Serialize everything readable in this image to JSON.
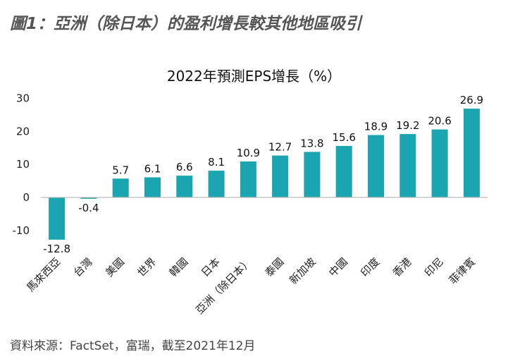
{
  "figure_title": "圖1：亞洲（除日本）的盈利增長較其他地區吸引",
  "source_note": "資料來源：FactSet，富瑞，截至2021年12月",
  "colors": {
    "bar": "#1aa5b0",
    "axis": "#bbbbbb",
    "title": "#555555"
  },
  "chart_data": {
    "type": "bar",
    "title": "2022年預測EPS增長（%）",
    "xlabel": "",
    "ylabel": "",
    "ylim": [
      -15,
      32
    ],
    "yticks": [
      30,
      20,
      10,
      0,
      -10
    ],
    "grid": false,
    "categories": [
      "馬來西亞",
      "台灣",
      "美國",
      "世界",
      "韓國",
      "日本",
      "亞洲（除日本）",
      "泰國",
      "新加坡",
      "中國",
      "印度",
      "香港",
      "印尼",
      "菲律賓"
    ],
    "values": [
      -12.8,
      -0.4,
      5.7,
      6.1,
      6.6,
      8.1,
      10.9,
      12.7,
      13.8,
      15.6,
      18.9,
      19.2,
      20.6,
      26.9
    ],
    "value_labels": [
      "-12.8",
      "-0.4",
      "5.7",
      "6.1",
      "6.6",
      "8.1",
      "10.9",
      "12.7",
      "13.8",
      "15.6",
      "18.9",
      "19.2",
      "20.6",
      "26.9"
    ]
  }
}
